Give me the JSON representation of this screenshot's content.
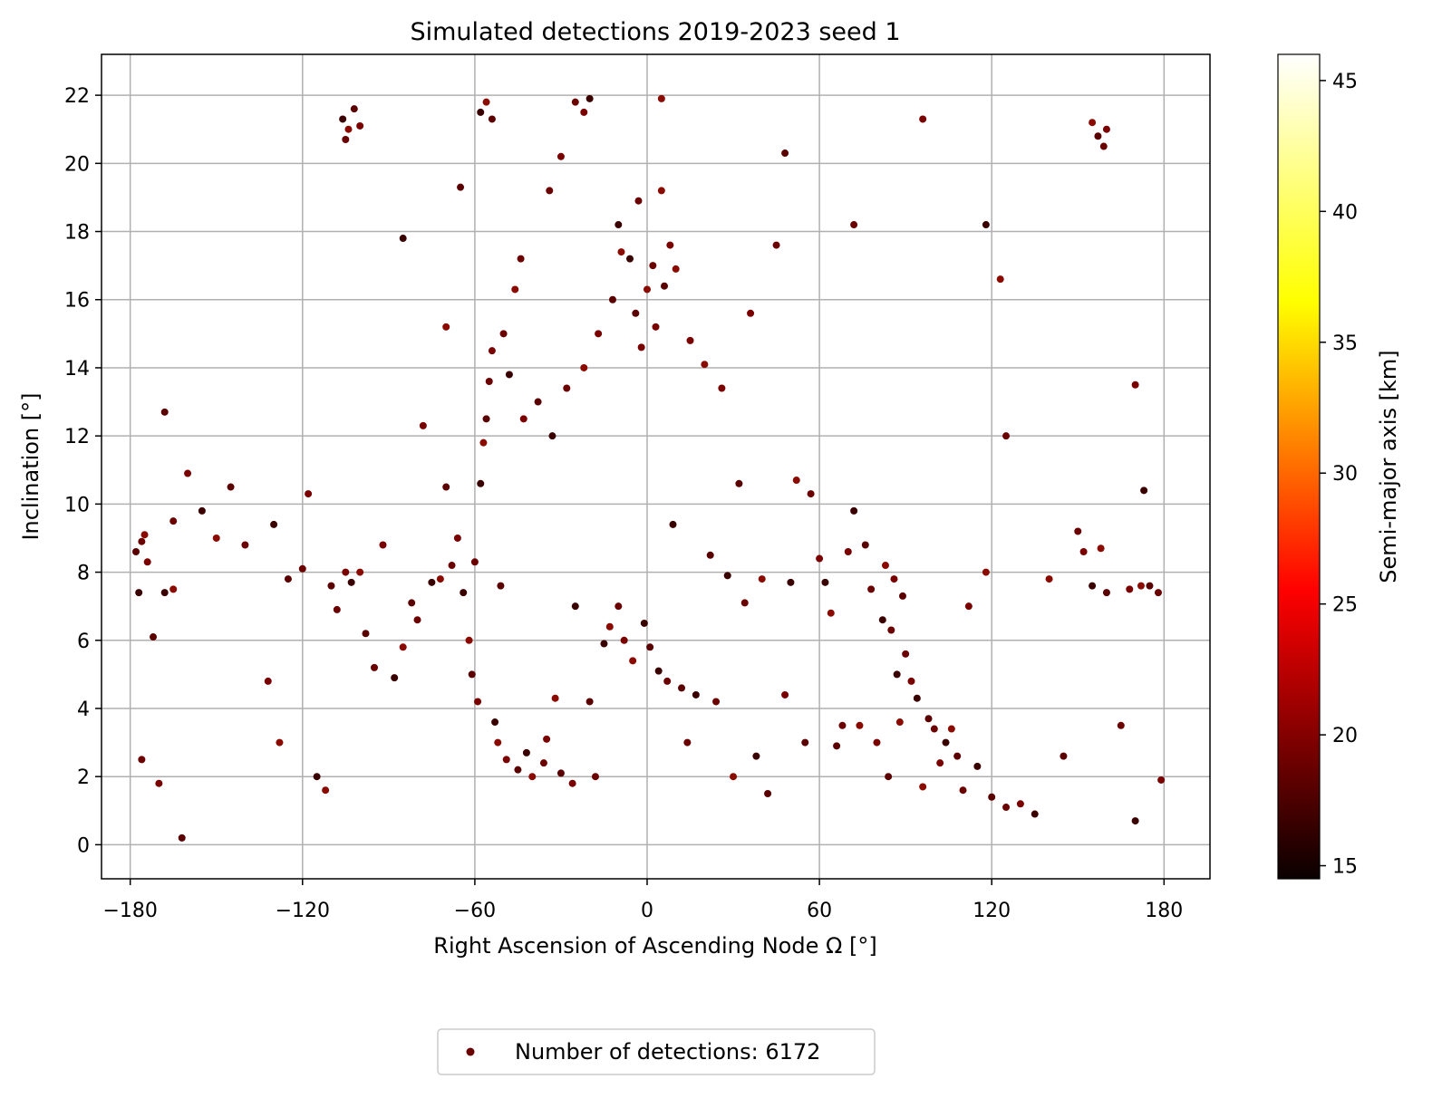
{
  "chart_data": {
    "type": "scatter",
    "title": "Simulated detections 2019-2023 seed 1",
    "xlabel": "Right Ascension of Ascending Node Ω [°]",
    "ylabel": "Inclination [°]",
    "xlim": [
      -190,
      196
    ],
    "ylim": [
      -1,
      23.2
    ],
    "xticks": [
      -180,
      -120,
      -60,
      0,
      60,
      120,
      180
    ],
    "xtick_labels": [
      "−180",
      "−120",
      "−60",
      "0",
      "60",
      "120",
      "180"
    ],
    "yticks": [
      0,
      2,
      4,
      6,
      8,
      10,
      12,
      14,
      16,
      18,
      20,
      22
    ],
    "ytick_labels": [
      "0",
      "2",
      "4",
      "6",
      "8",
      "10",
      "12",
      "14",
      "16",
      "18",
      "20",
      "22"
    ],
    "grid": true,
    "colormap": "hot",
    "marker_color": "#6b0000",
    "colorbar": {
      "label": "Semi-major axis [km]",
      "range": [
        14.5,
        46
      ],
      "ticks": [
        15,
        20,
        25,
        30,
        35,
        40,
        45
      ],
      "tick_labels": [
        "15",
        "20",
        "25",
        "30",
        "35",
        "40",
        "45"
      ]
    },
    "legend": {
      "position": "bottom-center (below axes)",
      "label": "Number of detections: 6172"
    },
    "series": [
      {
        "name": "Number of detections: 6172",
        "points": [
          [
            -178,
            8.6
          ],
          [
            -176,
            8.9
          ],
          [
            -174,
            8.3
          ],
          [
            -177,
            7.4
          ],
          [
            -175,
            9.1
          ],
          [
            -172,
            6.1
          ],
          [
            -176,
            2.5
          ],
          [
            -170,
            1.8
          ],
          [
            -168,
            7.4
          ],
          [
            -165,
            7.5
          ],
          [
            -162,
            0.2
          ],
          [
            -165,
            9.5
          ],
          [
            -160,
            10.9
          ],
          [
            -155,
            9.8
          ],
          [
            -150,
            9.0
          ],
          [
            -145,
            10.5
          ],
          [
            -140,
            8.8
          ],
          [
            -132,
            4.8
          ],
          [
            -130,
            9.4
          ],
          [
            -128,
            3.0
          ],
          [
            -125,
            7.8
          ],
          [
            -120,
            8.1
          ],
          [
            -118,
            10.3
          ],
          [
            -115,
            2.0
          ],
          [
            -112,
            1.6
          ],
          [
            -110,
            7.6
          ],
          [
            -108,
            6.9
          ],
          [
            -105,
            8.0
          ],
          [
            -103,
            7.7
          ],
          [
            -100,
            8.0
          ],
          [
            -98,
            6.2
          ],
          [
            -95,
            5.2
          ],
          [
            -92,
            8.8
          ],
          [
            -88,
            4.9
          ],
          [
            -85,
            5.8
          ],
          [
            -82,
            7.1
          ],
          [
            -80,
            6.6
          ],
          [
            -78,
            12.3
          ],
          [
            -75,
            7.7
          ],
          [
            -72,
            7.8
          ],
          [
            -70,
            10.5
          ],
          [
            -68,
            8.2
          ],
          [
            -66,
            9.0
          ],
          [
            -64,
            7.4
          ],
          [
            -62,
            6.0
          ],
          [
            -61,
            5.0
          ],
          [
            -60,
            8.3
          ],
          [
            -59,
            4.2
          ],
          [
            -58,
            10.6
          ],
          [
            -57,
            11.8
          ],
          [
            -56,
            12.5
          ],
          [
            -55,
            13.6
          ],
          [
            -54,
            14.5
          ],
          [
            -53,
            3.6
          ],
          [
            -52,
            3.0
          ],
          [
            -51,
            7.6
          ],
          [
            -50,
            15.0
          ],
          [
            -49,
            2.5
          ],
          [
            -48,
            13.8
          ],
          [
            -46,
            16.3
          ],
          [
            -45,
            2.2
          ],
          [
            -44,
            17.2
          ],
          [
            -43,
            12.5
          ],
          [
            -42,
            2.7
          ],
          [
            -40,
            2.0
          ],
          [
            -38,
            13.0
          ],
          [
            -36,
            2.4
          ],
          [
            -35,
            3.1
          ],
          [
            -33,
            12.0
          ],
          [
            -32,
            4.3
          ],
          [
            -30,
            2.1
          ],
          [
            -28,
            13.4
          ],
          [
            -26,
            1.8
          ],
          [
            -25,
            7.0
          ],
          [
            -22,
            14.0
          ],
          [
            -20,
            4.2
          ],
          [
            -18,
            2.0
          ],
          [
            -17,
            15.0
          ],
          [
            -15,
            5.9
          ],
          [
            -13,
            6.4
          ],
          [
            -12,
            16.0
          ],
          [
            -10,
            7.0
          ],
          [
            -8,
            6.0
          ],
          [
            -6,
            17.2
          ],
          [
            -5,
            5.4
          ],
          [
            -4,
            15.6
          ],
          [
            -3,
            18.9
          ],
          [
            -2,
            14.6
          ],
          [
            -1,
            6.5
          ],
          [
            0,
            16.3
          ],
          [
            1,
            5.8
          ],
          [
            2,
            17.0
          ],
          [
            3,
            15.2
          ],
          [
            4,
            5.1
          ],
          [
            5,
            19.2
          ],
          [
            6,
            16.4
          ],
          [
            7,
            4.8
          ],
          [
            8,
            17.6
          ],
          [
            9,
            9.4
          ],
          [
            10,
            16.9
          ],
          [
            12,
            4.6
          ],
          [
            14,
            3.0
          ],
          [
            15,
            14.8
          ],
          [
            17,
            4.4
          ],
          [
            20,
            14.1
          ],
          [
            22,
            8.5
          ],
          [
            24,
            4.2
          ],
          [
            26,
            13.4
          ],
          [
            28,
            7.9
          ],
          [
            30,
            2.0
          ],
          [
            32,
            10.6
          ],
          [
            34,
            7.1
          ],
          [
            36,
            15.6
          ],
          [
            38,
            2.6
          ],
          [
            40,
            7.8
          ],
          [
            42,
            1.5
          ],
          [
            45,
            17.6
          ],
          [
            48,
            4.4
          ],
          [
            50,
            7.7
          ],
          [
            52,
            10.7
          ],
          [
            55,
            3.0
          ],
          [
            57,
            10.3
          ],
          [
            60,
            8.4
          ],
          [
            62,
            7.7
          ],
          [
            64,
            6.8
          ],
          [
            66,
            2.9
          ],
          [
            68,
            3.5
          ],
          [
            70,
            8.6
          ],
          [
            72,
            9.8
          ],
          [
            74,
            3.5
          ],
          [
            76,
            8.8
          ],
          [
            78,
            7.5
          ],
          [
            80,
            3.0
          ],
          [
            82,
            6.6
          ],
          [
            83,
            8.2
          ],
          [
            84,
            2.0
          ],
          [
            85,
            6.3
          ],
          [
            86,
            7.8
          ],
          [
            87,
            5.0
          ],
          [
            88,
            3.6
          ],
          [
            89,
            7.3
          ],
          [
            90,
            5.6
          ],
          [
            92,
            4.8
          ],
          [
            94,
            4.3
          ],
          [
            96,
            1.7
          ],
          [
            98,
            3.7
          ],
          [
            100,
            3.4
          ],
          [
            102,
            2.4
          ],
          [
            104,
            3.0
          ],
          [
            106,
            3.4
          ],
          [
            108,
            2.6
          ],
          [
            110,
            1.6
          ],
          [
            112,
            7.0
          ],
          [
            115,
            2.3
          ],
          [
            118,
            8.0
          ],
          [
            120,
            1.4
          ],
          [
            125,
            1.1
          ],
          [
            130,
            1.2
          ],
          [
            135,
            0.9
          ],
          [
            140,
            7.8
          ],
          [
            145,
            2.6
          ],
          [
            150,
            9.2
          ],
          [
            152,
            8.6
          ],
          [
            155,
            7.6
          ],
          [
            158,
            8.7
          ],
          [
            160,
            7.4
          ],
          [
            165,
            3.5
          ],
          [
            168,
            7.5
          ],
          [
            170,
            0.7
          ],
          [
            172,
            7.6
          ],
          [
            175,
            7.6
          ],
          [
            178,
            7.4
          ],
          [
            179,
            1.9
          ],
          [
            -106,
            21.3
          ],
          [
            -104,
            21.0
          ],
          [
            -102,
            21.6
          ],
          [
            -105,
            20.7
          ],
          [
            -100,
            21.1
          ],
          [
            -58,
            21.5
          ],
          [
            -56,
            21.8
          ],
          [
            -54,
            21.3
          ],
          [
            -25,
            21.8
          ],
          [
            -22,
            21.5
          ],
          [
            -20,
            21.9
          ],
          [
            155,
            21.2
          ],
          [
            157,
            20.8
          ],
          [
            159,
            20.5
          ],
          [
            160,
            21.0
          ],
          [
            -85,
            17.8
          ],
          [
            -70,
            15.2
          ],
          [
            -65,
            19.3
          ],
          [
            -34,
            19.2
          ],
          [
            -30,
            20.2
          ],
          [
            -10,
            18.2
          ],
          [
            5,
            21.9
          ],
          [
            48,
            20.3
          ],
          [
            72,
            18.2
          ],
          [
            96,
            21.3
          ],
          [
            118,
            18.2
          ],
          [
            123,
            16.6
          ],
          [
            -168,
            12.7
          ],
          [
            125,
            12.0
          ],
          [
            170,
            13.5
          ],
          [
            173,
            10.4
          ],
          [
            -9,
            17.4
          ]
        ]
      }
    ]
  }
}
